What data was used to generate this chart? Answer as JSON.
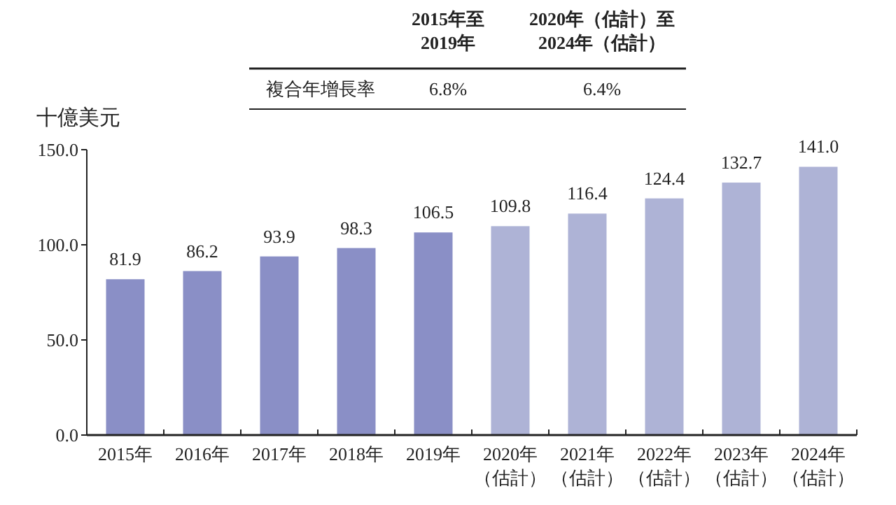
{
  "chart_data": {
    "type": "bar",
    "ylabel": "十億美元",
    "categories": [
      "2015年",
      "2016年",
      "2017年",
      "2018年",
      "2019年",
      "2020年（估計）",
      "2021年（估計）",
      "2022年（估計）",
      "2023年（估計）",
      "2024年（估計）"
    ],
    "values": [
      81.9,
      86.2,
      93.9,
      98.3,
      106.5,
      109.8,
      116.4,
      124.4,
      132.7,
      141.0
    ],
    "value_labels": [
      "81.9",
      "86.2",
      "93.9",
      "98.3",
      "106.5",
      "109.8",
      "116.4",
      "124.4",
      "132.7",
      "141.0"
    ],
    "colors": [
      "#8a8fc6",
      "#8a8fc6",
      "#8a8fc6",
      "#8a8fc6",
      "#8a8fc6",
      "#aeb3d6",
      "#aeb3d6",
      "#aeb3d6",
      "#aeb3d6",
      "#aeb3d6"
    ],
    "ylim": [
      0,
      150
    ],
    "yticks": [
      {
        "value": 0,
        "label": "0.0"
      },
      {
        "value": 50,
        "label": "50.0"
      },
      {
        "value": 100,
        "label": "100.0"
      },
      {
        "value": 150,
        "label": "150.0"
      }
    ],
    "annotations": [
      "2015年至2019年",
      "2020年（估計）至2024年（估計）",
      "複合年增長率",
      "6.8%",
      "6.4%"
    ]
  }
}
